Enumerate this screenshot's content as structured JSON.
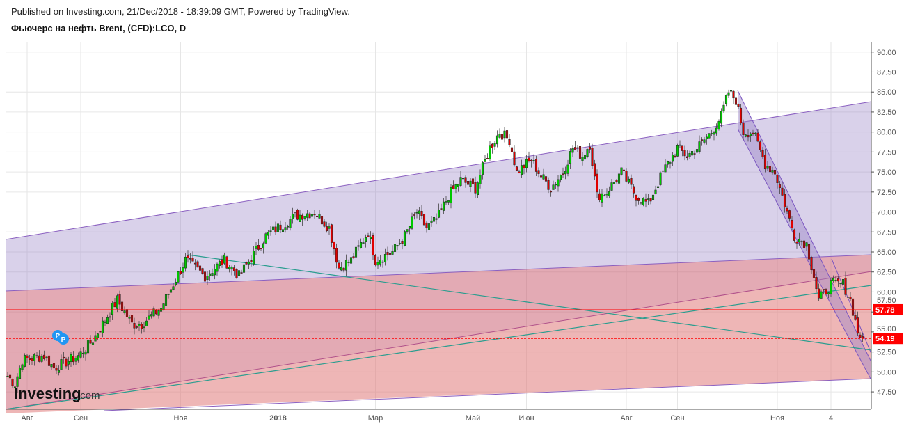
{
  "header": {
    "published": "Published on Investing.com, 21/Dec/2018 - 18:39:09 GMT, Powered by TradingView.",
    "title": "Фьючерс на нефть Brent, (CFD):LCO, D"
  },
  "logo": {
    "text": "Investing",
    "suffix": ".com"
  },
  "chart_data": {
    "type": "candlestick",
    "title": "Фьючерс на нефть Brent, (CFD):LCO, D",
    "ylim": [
      45.5,
      91.5
    ],
    "y_ticks": [
      "47.50",
      "50.00",
      "52.50",
      "55.00",
      "57.50",
      "60.00",
      "62.50",
      "65.00",
      "67.50",
      "70.00",
      "72.50",
      "75.00",
      "77.50",
      "80.00",
      "82.50",
      "85.00",
      "87.50",
      "90.00"
    ],
    "x_ticks": [
      {
        "label": "Авг",
        "i": 8
      },
      {
        "label": "Сен",
        "i": 30
      },
      {
        "label": "Ноя",
        "i": 71
      },
      {
        "label": "2018",
        "i": 111
      },
      {
        "label": "Мар",
        "i": 151
      },
      {
        "label": "Май",
        "i": 191
      },
      {
        "label": "Июн",
        "i": 213
      },
      {
        "label": "Авг",
        "i": 254
      },
      {
        "label": "Сен",
        "i": 275
      },
      {
        "label": "Ноя",
        "i": 316
      },
      {
        "label": "4",
        "i": 338
      }
    ],
    "close_anchors": [
      [
        0,
        49.5
      ],
      [
        3,
        48.5
      ],
      [
        6,
        51.5
      ],
      [
        15,
        52
      ],
      [
        19,
        50.5
      ],
      [
        29,
        52
      ],
      [
        35,
        54
      ],
      [
        45,
        59
      ],
      [
        51,
        56
      ],
      [
        55,
        56
      ],
      [
        63,
        58
      ],
      [
        68,
        61
      ],
      [
        73,
        64
      ],
      [
        81,
        62
      ],
      [
        89,
        64
      ],
      [
        95,
        62
      ],
      [
        106,
        67
      ],
      [
        118,
        69.5
      ],
      [
        126,
        70
      ],
      [
        132,
        68
      ],
      [
        136,
        63
      ],
      [
        141,
        64
      ],
      [
        148,
        67.5
      ],
      [
        151,
        64
      ],
      [
        158,
        65
      ],
      [
        163,
        67
      ],
      [
        168,
        70
      ],
      [
        172,
        68
      ],
      [
        176,
        69
      ],
      [
        181,
        72
      ],
      [
        186,
        74
      ],
      [
        192,
        73
      ],
      [
        198,
        78
      ],
      [
        202,
        80
      ],
      [
        206,
        79
      ],
      [
        209,
        75
      ],
      [
        215,
        76.5
      ],
      [
        219,
        74.5
      ],
      [
        223,
        73
      ],
      [
        228,
        75
      ],
      [
        232,
        78
      ],
      [
        236,
        77
      ],
      [
        239,
        78.5
      ],
      [
        242,
        72
      ],
      [
        246,
        72.5
      ],
      [
        252,
        75
      ],
      [
        258,
        72
      ],
      [
        263,
        71
      ],
      [
        269,
        75
      ],
      [
        275,
        78
      ],
      [
        279,
        77
      ],
      [
        283,
        78
      ],
      [
        289,
        80
      ],
      [
        293,
        82
      ],
      [
        296,
        85
      ],
      [
        299,
        84
      ],
      [
        302,
        80
      ],
      [
        306,
        80
      ],
      [
        311,
        76
      ],
      [
        315,
        75
      ],
      [
        319,
        71
      ],
      [
        323,
        67
      ],
      [
        328,
        66
      ],
      [
        331,
        62
      ],
      [
        333,
        59
      ],
      [
        338,
        61
      ],
      [
        343,
        61
      ],
      [
        346,
        59
      ],
      [
        349,
        55
      ],
      [
        351,
        54.19
      ]
    ],
    "price_lines": [
      {
        "label": "57.78",
        "value": 57.78,
        "style": "solid",
        "color": "#ff0000"
      },
      {
        "label": "54.19",
        "value": 54.19,
        "style": "dotted",
        "color": "#ff0000"
      }
    ],
    "colors": {
      "up": "#00c800",
      "down": "#e00000",
      "channel_up": "#9b86c8",
      "channel_low": "#d98f9c",
      "channel_bottom": "#eca7a7",
      "trend": "#2a9d8f"
    }
  }
}
